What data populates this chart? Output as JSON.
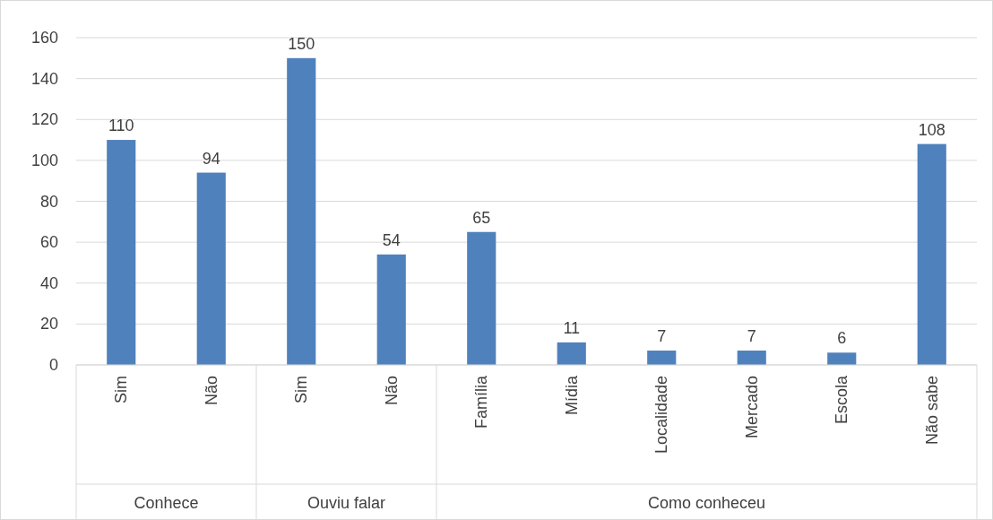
{
  "chart_data": {
    "type": "bar",
    "categories": [
      "Sim",
      "Não",
      "Sim",
      "Não",
      "Família",
      "Mídia",
      "Localidade",
      "Mercado",
      "Escola",
      "Não sabe"
    ],
    "values": [
      110,
      94,
      150,
      54,
      65,
      11,
      7,
      7,
      6,
      108
    ],
    "color": "#4f81bd",
    "ylim": [
      0,
      160
    ],
    "yticks": [
      0,
      20,
      40,
      60,
      80,
      100,
      120,
      140,
      160
    ],
    "grid": "y",
    "data_labels": true,
    "annotations": [
      "Conhece",
      "Ouviu falar",
      "Como conheceu"
    ]
  }
}
